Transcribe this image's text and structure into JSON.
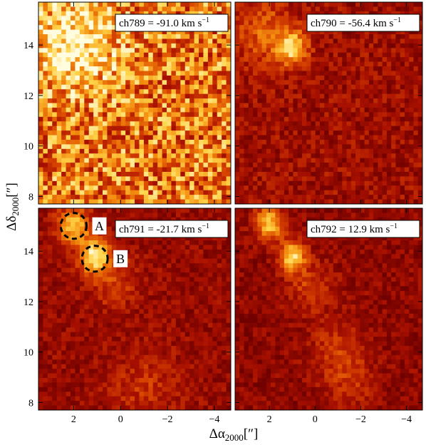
{
  "chart_data": {
    "type": "heatmap",
    "xlabel": "Δα",
    "xlabel_sub": "2000",
    "xlabel_unit": "[″]",
    "ylabel": "Δδ",
    "ylabel_sub": "2000",
    "ylabel_unit": "[″]",
    "xlim": [
      3.5,
      -4.7
    ],
    "ylim": [
      7.7,
      15.7
    ],
    "xticks": [
      {
        "value": 2,
        "label": "2"
      },
      {
        "value": 0,
        "label": "0"
      },
      {
        "value": -2,
        "label": "−2"
      },
      {
        "value": -4,
        "label": "−4"
      }
    ],
    "yticks": [
      {
        "value": 8,
        "label": "8"
      },
      {
        "value": 10,
        "label": "10"
      },
      {
        "value": 12,
        "label": "12"
      },
      {
        "value": 14,
        "label": "14"
      }
    ],
    "colormap": [
      "#2a0000",
      "#6e0000",
      "#a81000",
      "#d84400",
      "#f48e10",
      "#ffd44a",
      "#fffce0"
    ],
    "panels": [
      {
        "channel_label": "ch789 = -91.0 km s",
        "label_superscript": "−1",
        "background_level": 0.62,
        "noise": 0.3,
        "blobs": [
          {
            "x": 2.0,
            "y": 14.0,
            "amplitude": 0.35,
            "sigma": 1.3
          }
        ]
      },
      {
        "channel_label": "ch790 = -56.4 km s",
        "label_superscript": "−1",
        "background_level": 0.3,
        "noise": 0.12,
        "blobs": [
          {
            "x": 1.0,
            "y": 13.9,
            "amplitude": 0.55,
            "sigma": 0.45
          },
          {
            "x": 2.2,
            "y": 14.5,
            "amplitude": 0.25,
            "sigma": 0.9
          }
        ]
      },
      {
        "channel_label": "ch791 = -21.7 km s",
        "label_superscript": "−1",
        "background_level": 0.28,
        "noise": 0.1,
        "blobs": [
          {
            "x": 2.0,
            "y": 15.0,
            "amplitude": 0.55,
            "sigma": 0.5
          },
          {
            "x": 1.1,
            "y": 13.8,
            "amplitude": 0.65,
            "sigma": 0.45
          },
          {
            "x": 0.3,
            "y": 12.8,
            "amplitude": 0.2,
            "sigma": 0.7
          },
          {
            "x": -1.0,
            "y": 8.6,
            "amplitude": 0.15,
            "sigma": 1.0
          }
        ],
        "annotations": [
          {
            "label": "A",
            "x": 2.0,
            "y": 15.0,
            "radius": 0.55
          },
          {
            "label": "B",
            "x": 1.1,
            "y": 13.7,
            "radius": 0.55
          }
        ]
      },
      {
        "channel_label": "ch792 = 12.9 km s",
        "label_superscript": "−1",
        "background_level": 0.26,
        "noise": 0.1,
        "blobs": [
          {
            "x": 2.0,
            "y": 15.1,
            "amplitude": 0.55,
            "sigma": 0.45
          },
          {
            "x": 1.0,
            "y": 13.8,
            "amplitude": 0.6,
            "sigma": 0.4
          },
          {
            "x": 0.2,
            "y": 12.6,
            "amplitude": 0.2,
            "sigma": 0.7
          },
          {
            "x": -1.0,
            "y": 10.2,
            "amplitude": 0.18,
            "sigma": 0.8
          },
          {
            "x": -1.5,
            "y": 8.8,
            "amplitude": 0.15,
            "sigma": 0.8
          }
        ]
      }
    ]
  }
}
